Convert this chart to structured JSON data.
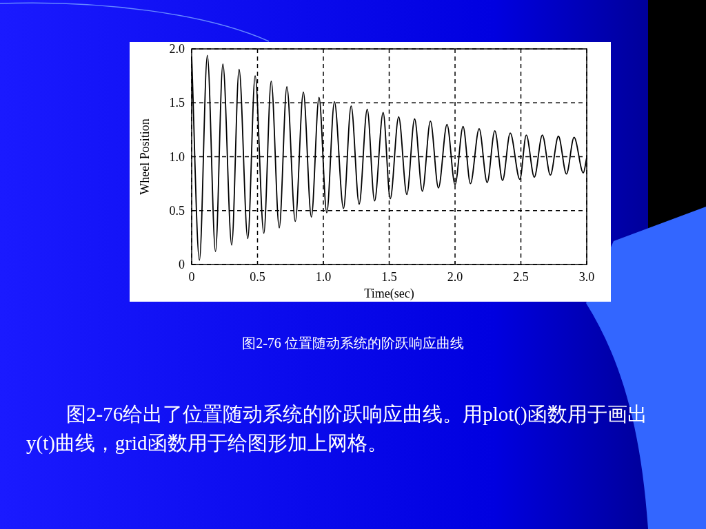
{
  "chart_data": {
    "type": "line",
    "xlabel": "Time(sec)",
    "ylabel": "Wheel Position",
    "xlim": [
      0,
      3
    ],
    "ylim": [
      0,
      2
    ],
    "xticks": [
      0,
      0.5,
      {
        "value": 1,
        "label": "1.0"
      },
      1.5,
      {
        "value": 2,
        "label": "2.0"
      },
      2.5,
      {
        "value": 3,
        "label": "3.0"
      }
    ],
    "yticks": [
      0,
      0.5,
      {
        "value": 1,
        "label": "1.0"
      },
      1.5,
      {
        "value": 2,
        "label": "2.0"
      }
    ],
    "grid": true,
    "line_style": "solid",
    "x": [
      0,
      0.059,
      0.119,
      0.181,
      0.237,
      0.304,
      0.36,
      0.426,
      0.482,
      0.548,
      0.604,
      0.665,
      0.723,
      0.787,
      0.848,
      0.909,
      0.967,
      1.026,
      1.084,
      1.153,
      1.211,
      1.272,
      1.333,
      1.389,
      1.454,
      1.508,
      1.572,
      1.634,
      1.693,
      1.752,
      1.813,
      1.874,
      1.939,
      2.0,
      2.061,
      2.117,
      2.183,
      2.244,
      2.302,
      2.361,
      2.419,
      2.492,
      2.541,
      2.602,
      2.663,
      2.724,
      2.785,
      2.846,
      2.904,
      2.974,
      3.0
    ],
    "series": [
      {
        "color": "#000000",
        "values": [
          1.93,
          0.04,
          1.94,
          0.12,
          1.86,
          0.18,
          1.81,
          0.24,
          1.75,
          0.29,
          1.7,
          0.34,
          1.65,
          0.4,
          1.6,
          0.44,
          1.55,
          0.48,
          1.51,
          0.52,
          1.47,
          0.56,
          1.44,
          0.59,
          1.41,
          0.61,
          1.37,
          0.65,
          1.35,
          0.68,
          1.33,
          0.71,
          1.3,
          0.74,
          1.28,
          0.75,
          1.26,
          0.76,
          1.24,
          0.78,
          1.22,
          0.79,
          1.2,
          0.81,
          1.2,
          0.83,
          1.19,
          0.84,
          1.18,
          0.85,
          0.99
        ]
      }
    ],
    "annotations": [
      "图2-76  位置随动系统的阶跃响应曲线",
      "图2-76给出了位置随动系统的阶跃响应曲线。用plot()函数用于画出y(t)曲线，grid函数用于给图形加上网格。"
    ]
  }
}
